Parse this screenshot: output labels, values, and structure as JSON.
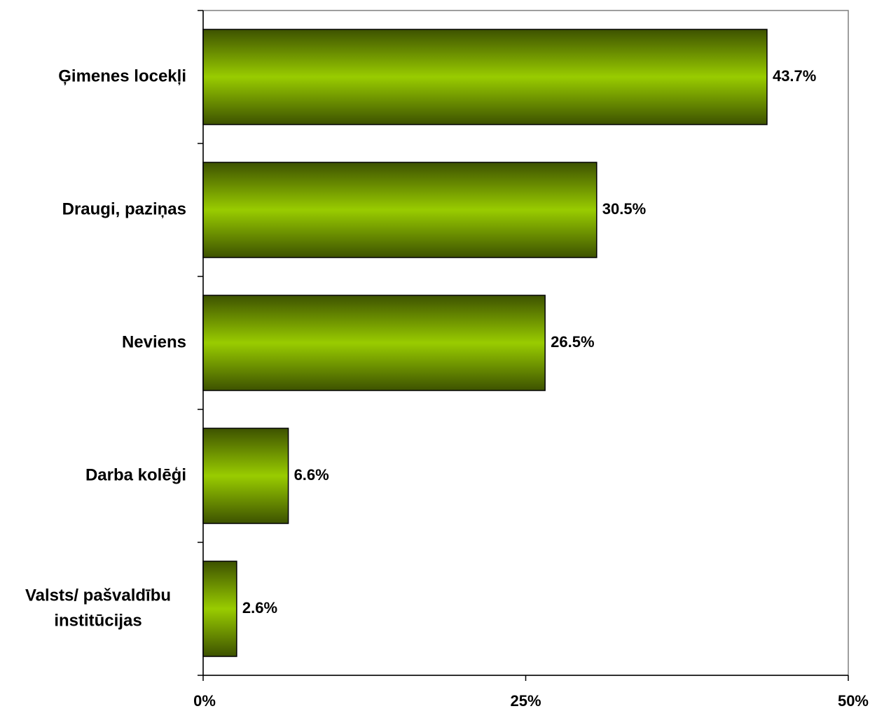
{
  "chart_data": {
    "type": "bar",
    "orientation": "horizontal",
    "categories": [
      [
        "Ģimenes locekļi"
      ],
      [
        "Draugi, paziņas"
      ],
      [
        "Neviens"
      ],
      [
        "Darba kolēģi"
      ],
      [
        "Valsts/ pašvaldību",
        "institūcijas"
      ]
    ],
    "values": [
      43.7,
      30.5,
      26.5,
      6.6,
      2.6
    ],
    "value_labels": [
      "43.7%",
      "30.5%",
      "26.5%",
      "6.6%",
      "2.6%"
    ],
    "xlim": [
      0,
      50
    ],
    "xticks": [
      0,
      25,
      50
    ],
    "xtick_labels": [
      "0%",
      "25%",
      "50%"
    ],
    "title": "",
    "xlabel": "",
    "ylabel": "",
    "grid": false,
    "colors": {
      "bar_center": "#99cc00",
      "bar_edge": "#3d5200",
      "bar_outline": "#000000",
      "axis": "#000000",
      "frame": "#7f7f7f"
    }
  }
}
